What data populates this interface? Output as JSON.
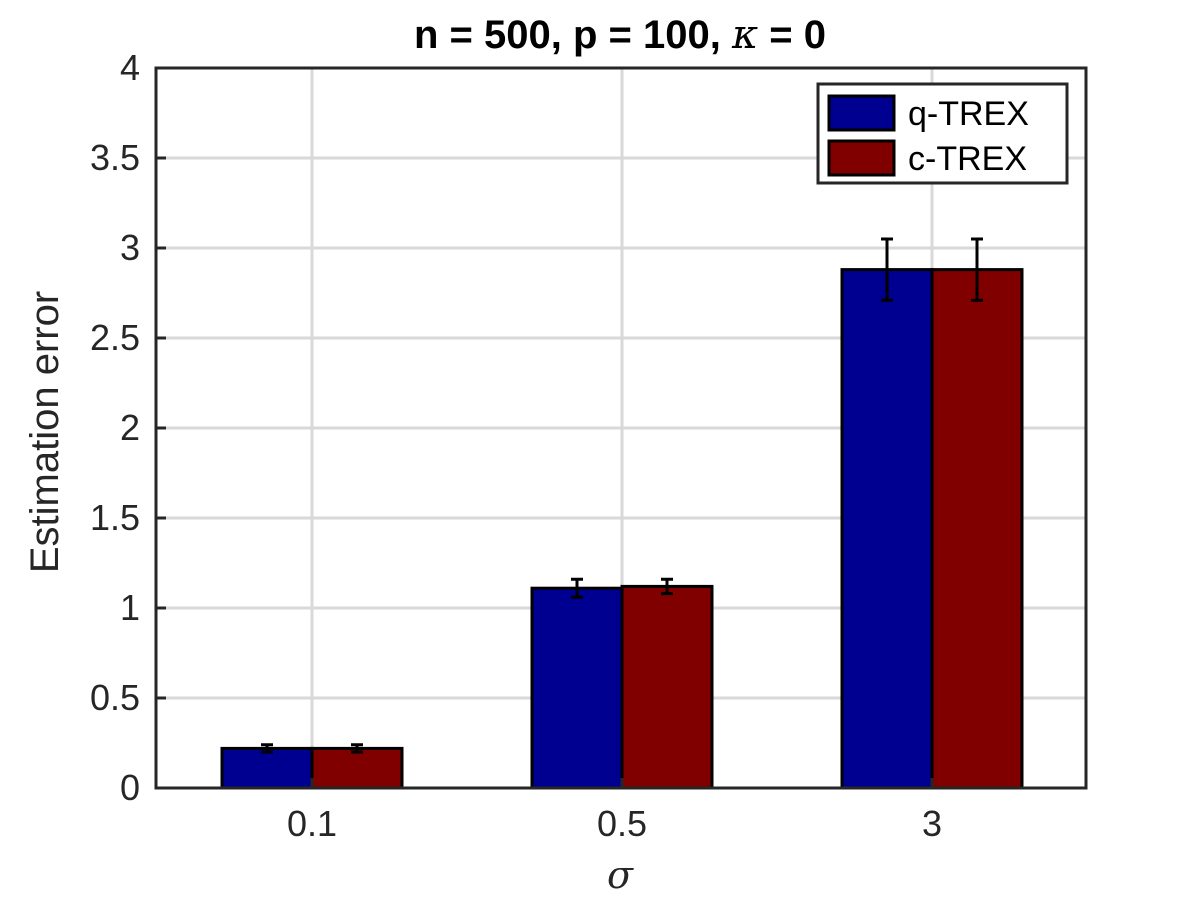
{
  "chart_data": {
    "type": "bar",
    "title_prefix": "n = 500, p = 100, ",
    "title_symbol": "κ",
    "title_suffix": " = 0",
    "xlabel": "σ",
    "ylabel": "Estimation error",
    "categories": [
      "0.1",
      "0.5",
      "3"
    ],
    "ylim": [
      0,
      4
    ],
    "yticks": [
      0,
      0.5,
      1,
      1.5,
      2,
      2.5,
      3,
      3.5,
      4
    ],
    "ytick_labels": [
      "0",
      "0.5",
      "1",
      "1.5",
      "2",
      "2.5",
      "3",
      "3.5",
      "4"
    ],
    "grid": true,
    "legend_position": "top-right",
    "series": [
      {
        "name": "q-TREX",
        "color": "#000090",
        "values": [
          0.22,
          1.11,
          2.88
        ],
        "errors": [
          0.02,
          0.05,
          0.17
        ]
      },
      {
        "name": "c-TREX",
        "color": "#800000",
        "values": [
          0.22,
          1.12,
          2.88
        ],
        "errors": [
          0.02,
          0.04,
          0.17
        ]
      }
    ]
  }
}
